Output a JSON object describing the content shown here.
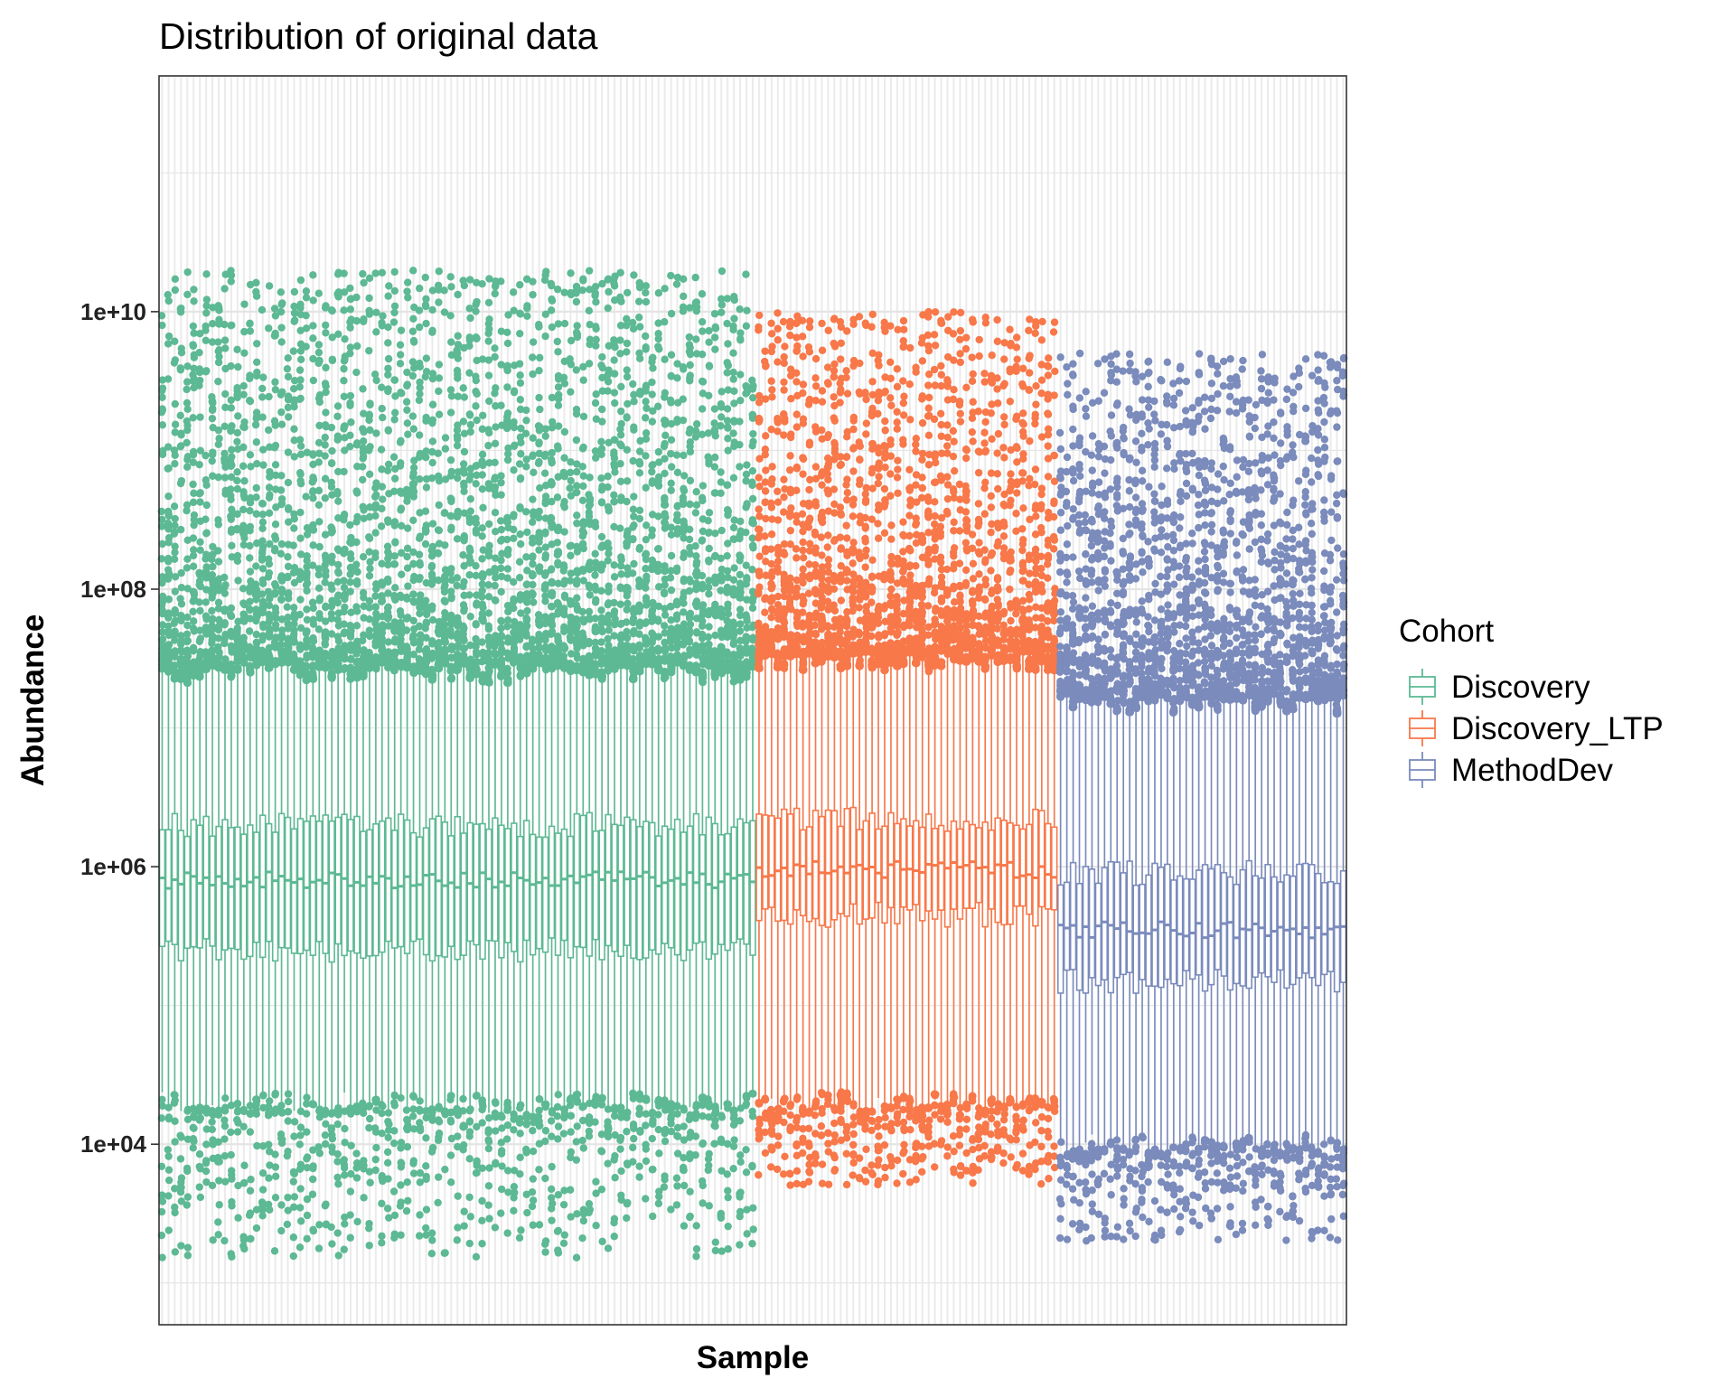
{
  "chart_data": {
    "type": "boxplot",
    "title": "Distribution of original data",
    "xlabel": "Sample",
    "ylabel": "Abundance",
    "y_scale": "log10",
    "ylim": [
      500,
      500000000000
    ],
    "y_ticks": [
      {
        "value": 10000,
        "label": "1e+04"
      },
      {
        "value": 1000000,
        "label": "1e+06"
      },
      {
        "value": 100000000,
        "label": "1e+08"
      },
      {
        "value": 10000000000,
        "label": "1e+10"
      }
    ],
    "x_ticks_shown": false,
    "grid": true,
    "legend": {
      "title": "Cohort",
      "position": "right"
    },
    "series": [
      {
        "name": "Discovery",
        "color": "#5DB994",
        "n_samples": 95,
        "whisker_low": 20000,
        "q1": 250000,
        "median": 800000,
        "q3": 2000000,
        "whisker_high": 25000000,
        "outlier_range": [
          1500,
          20000000000
        ]
      },
      {
        "name": "Discovery_LTP",
        "color": "#F8784A",
        "n_samples": 48,
        "whisker_low": 20000,
        "q1": 450000,
        "median": 950000,
        "q3": 2200000,
        "whisker_high": 30000000,
        "outlier_range": [
          5000,
          10000000000
        ]
      },
      {
        "name": "MethodDev",
        "color": "#7A8BBC",
        "n_samples": 46,
        "whisker_low": 10000,
        "q1": 150000,
        "median": 350000,
        "q3": 900000,
        "whisker_high": 15000000,
        "outlier_range": [
          2000,
          5000000000
        ]
      }
    ]
  }
}
